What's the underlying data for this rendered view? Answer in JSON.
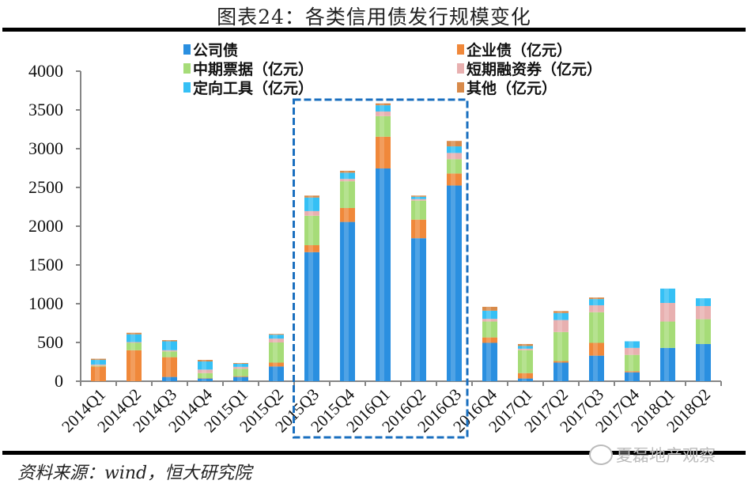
{
  "title": "图表24：各类信用债发行规模变化",
  "source": "资料来源：wind，恒大研究院",
  "watermark": "夏磊地产观察",
  "chart_data": {
    "type": "bar",
    "stacked": true,
    "title": "图表24：各类信用债发行规模变化",
    "xlabel": "",
    "ylabel": "",
    "ylim": [
      0,
      4000
    ],
    "yticks": [
      "0",
      "500",
      "1000",
      "1500",
      "2000",
      "2500",
      "3000",
      "3500",
      "4000"
    ],
    "ytick_values": [
      0,
      500,
      1000,
      1500,
      2000,
      2500,
      3000,
      3500,
      4000
    ],
    "grid": false,
    "legend_position": "top",
    "highlight": {
      "from": "2015Q3",
      "to": "2016Q3",
      "style": "dashed-box",
      "color": "#1a6fbf"
    },
    "categories": [
      "2014Q1",
      "2014Q2",
      "2014Q3",
      "2014Q4",
      "2015Q1",
      "2015Q2",
      "2015Q3",
      "2015Q4",
      "2016Q1",
      "2016Q2",
      "2016Q3",
      "2016Q4",
      "2017Q1",
      "2017Q2",
      "2017Q3",
      "2017Q4",
      "2018Q1",
      "2018Q2"
    ],
    "series": [
      {
        "name": "公司债",
        "color": "#2a8fe0",
        "values": [
          0,
          0,
          55,
          35,
          55,
          190,
          1665,
          2055,
          2745,
          1845,
          2525,
          495,
          35,
          240,
          330,
          115,
          430,
          480
        ]
      },
      {
        "name": "企业债（亿元）",
        "color": "#f0883a",
        "values": [
          190,
          400,
          255,
          5,
          10,
          50,
          90,
          180,
          410,
          240,
          155,
          70,
          70,
          20,
          165,
          15,
          0,
          0
        ]
      },
      {
        "name": "中期票据（亿元）",
        "color": "#a6dc78",
        "values": [
          10,
          95,
          75,
          65,
          95,
          260,
          380,
          345,
          265,
          245,
          185,
          205,
          295,
          375,
          395,
          210,
          340,
          320
        ]
      },
      {
        "name": "短期融资券（亿元）",
        "color": "#e8b0b0",
        "values": [
          15,
          10,
          15,
          45,
          25,
          50,
          60,
          30,
          60,
          20,
          80,
          35,
          20,
          155,
          90,
          90,
          240,
          170
        ]
      },
      {
        "name": "定向工具（亿元）",
        "color": "#35c0f5",
        "values": [
          60,
          100,
          115,
          105,
          40,
          50,
          175,
          80,
          80,
          30,
          85,
          105,
          35,
          90,
          80,
          85,
          185,
          100
        ]
      },
      {
        "name": "其他（亿元）",
        "color": "#d88a4a",
        "values": [
          15,
          20,
          15,
          20,
          10,
          10,
          25,
          25,
          25,
          15,
          70,
          50,
          25,
          25,
          20,
          0,
          0,
          0
        ]
      }
    ]
  }
}
